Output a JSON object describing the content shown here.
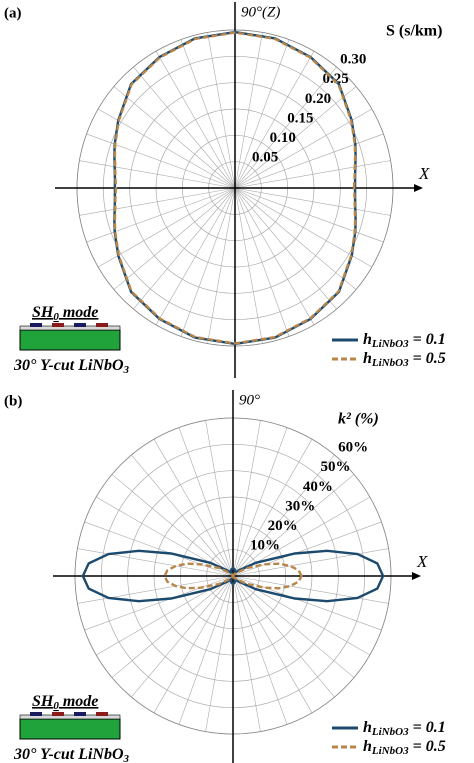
{
  "chart_data": [
    {
      "type": "polar",
      "panel_label": "(a)",
      "angle_label": "90°(Z)",
      "axis_label": "X",
      "r_title": "S (s/km)",
      "theta": [
        0,
        5,
        10,
        15,
        20,
        30,
        45,
        60,
        75,
        90,
        105,
        120,
        135,
        150,
        160,
        165,
        170,
        175,
        180,
        185,
        190,
        195,
        200,
        210,
        225,
        240,
        255,
        270,
        285,
        300,
        315,
        330,
        340,
        345,
        350,
        355
      ],
      "rlim": [
        0,
        0.3
      ],
      "rticks": [
        0.05,
        {
          "value": 0.1,
          "label": "0.10"
        },
        0.15,
        {
          "value": 0.2,
          "label": "0.20"
        },
        0.25,
        {
          "value": 0.3,
          "label": "0.30"
        }
      ],
      "series": [
        {
          "name": "hLiNbO3 = 0.1",
          "color": "#1b4a6e",
          "dashed": false,
          "values": [
            0.228,
            0.229,
            0.232,
            0.237,
            0.243,
            0.256,
            0.279,
            0.287,
            0.294,
            0.296,
            0.294,
            0.287,
            0.279,
            0.256,
            0.243,
            0.237,
            0.232,
            0.229,
            0.228,
            0.229,
            0.232,
            0.237,
            0.243,
            0.256,
            0.279,
            0.287,
            0.294,
            0.296,
            0.294,
            0.287,
            0.279,
            0.256,
            0.243,
            0.237,
            0.232,
            0.229
          ]
        },
        {
          "name": "hLiNbO3 = 0.5",
          "color": "#b8864b",
          "dashed": true,
          "values": [
            0.226,
            0.228,
            0.231,
            0.236,
            0.242,
            0.255,
            0.278,
            0.286,
            0.293,
            0.295,
            0.293,
            0.286,
            0.278,
            0.255,
            0.242,
            0.236,
            0.231,
            0.228,
            0.226,
            0.228,
            0.231,
            0.236,
            0.242,
            0.255,
            0.278,
            0.286,
            0.293,
            0.295,
            0.293,
            0.286,
            0.278,
            0.255,
            0.242,
            0.236,
            0.231,
            0.228
          ]
        }
      ],
      "inset_title": "SH0 mode",
      "inset_caption": "30° Y-cut LiNbO3",
      "legend": "lower right"
    },
    {
      "type": "polar",
      "panel_label": "(b)",
      "angle_label": "90°",
      "axis_label": "X",
      "r_title": "k² (%)",
      "theta": [
        0,
        5,
        10,
        15,
        20,
        30,
        45,
        60,
        75,
        90,
        105,
        120,
        135,
        150,
        160,
        165,
        170,
        175,
        180,
        185,
        190,
        195,
        200,
        210,
        225,
        240,
        255,
        270,
        285,
        300,
        315,
        330,
        340,
        345,
        350,
        355
      ],
      "rlim": [
        0,
        60
      ],
      "rticks": [
        {
          "value": 10,
          "label": "10%"
        },
        {
          "value": 20,
          "label": "20%"
        },
        {
          "value": 30,
          "label": "30%"
        },
        {
          "value": 40,
          "label": "40%"
        },
        {
          "value": 50,
          "label": "50%"
        },
        {
          "value": 60,
          "label": "60%"
        }
      ],
      "series": [
        {
          "name": "hLiNbO3 = 0.1",
          "color": "#1b4a6e",
          "dashed": false,
          "values": [
            57,
            55,
            48,
            37,
            25,
            10,
            3,
            1.5,
            2.5,
            3,
            2.5,
            1.5,
            3,
            10,
            25,
            37,
            48,
            55,
            57,
            55,
            48,
            37,
            25,
            10,
            3,
            1.5,
            2.5,
            3,
            2.5,
            1.5,
            3,
            10,
            25,
            37,
            48,
            55
          ]
        },
        {
          "name": "hLiNbO3 = 0.5",
          "color": "#b8864b",
          "dashed": true,
          "values": [
            26,
            25,
            22,
            18,
            13,
            6,
            1.5,
            0.5,
            0.5,
            0.5,
            0.5,
            0.5,
            1.5,
            6,
            13,
            18,
            22,
            25,
            26,
            25,
            22,
            18,
            13,
            6,
            1.5,
            0.5,
            0.5,
            0.5,
            0.5,
            0.5,
            1.5,
            6,
            13,
            18,
            22,
            25
          ]
        }
      ],
      "inset_title": "SH0 mode",
      "inset_caption": "30° Y-cut LiNbO3",
      "legend": "lower right"
    }
  ]
}
